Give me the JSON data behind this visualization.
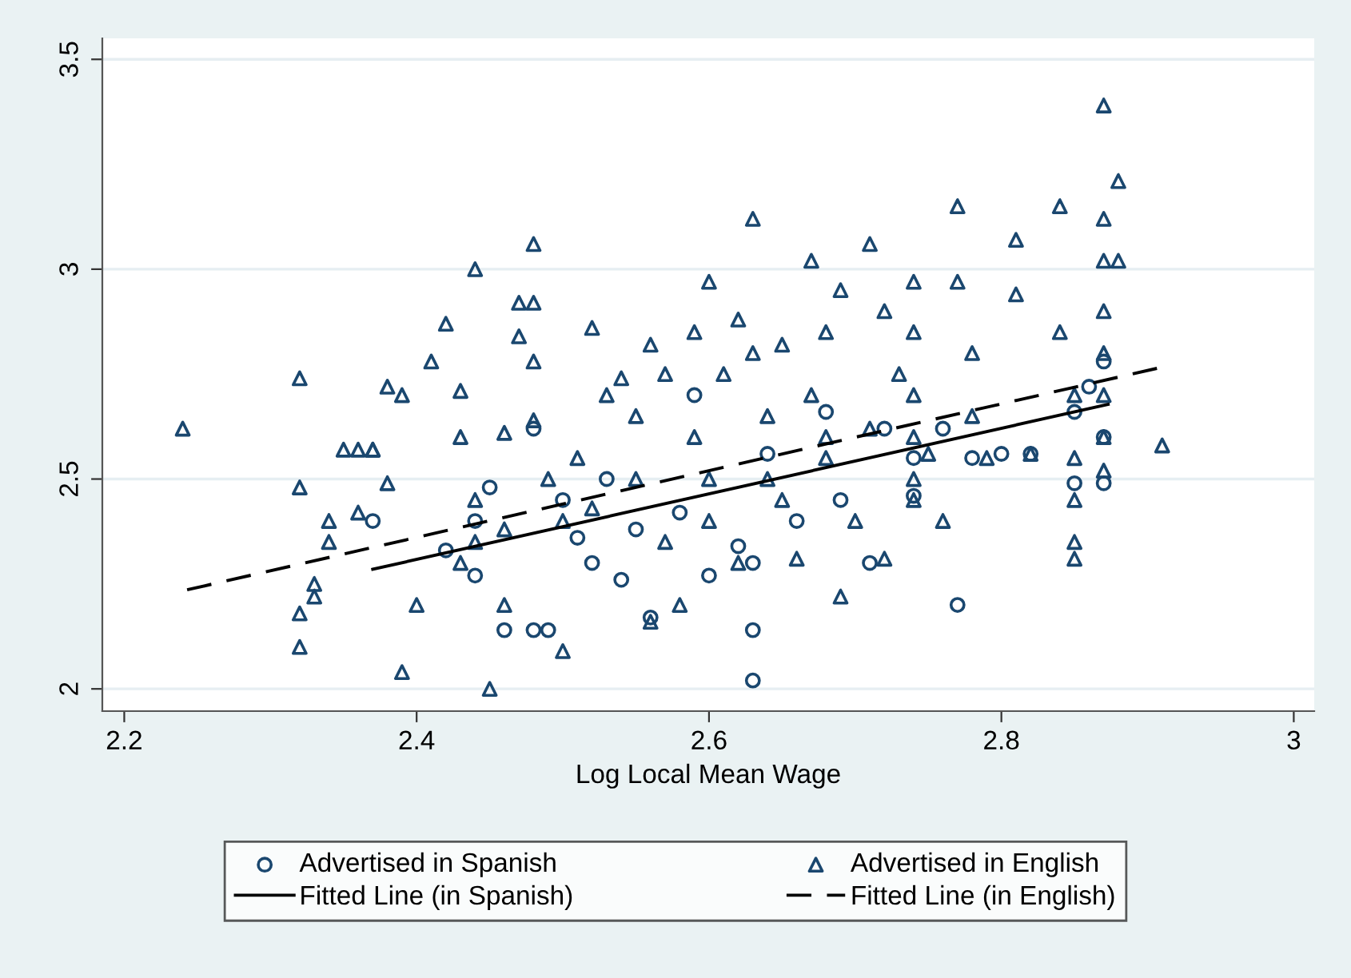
{
  "chart_data": {
    "type": "scatter",
    "xlabel": "Log Local Mean Wage",
    "xlim": [
      2.185,
      3.014
    ],
    "xticks": [
      {
        "value": 2.2,
        "label": "2.2"
      },
      {
        "value": 2.4,
        "label": "2.4"
      },
      {
        "value": 2.6,
        "label": "2.6"
      },
      {
        "value": 2.8,
        "label": "2.8"
      },
      {
        "value": 3,
        "label": "3"
      }
    ],
    "ylim": [
      1.947,
      3.55
    ],
    "yticks": [
      {
        "value": 2,
        "label": "2"
      },
      {
        "value": 2.5,
        "label": "2.5"
      },
      {
        "value": 3,
        "label": "3"
      },
      {
        "value": 3.5,
        "label": "3.5"
      }
    ],
    "grid": "y",
    "legend": "bottom",
    "series": [
      {
        "name": "Advertised in Spanish",
        "marker": "circle",
        "color": "#1a476f",
        "x": [
          2.37,
          2.42,
          2.44,
          2.44,
          2.46,
          2.48,
          2.48,
          2.49,
          2.5,
          2.52,
          2.53,
          2.55,
          2.56,
          2.58,
          2.59,
          2.6,
          2.62,
          2.63,
          2.63,
          2.63,
          2.64,
          2.66,
          2.68,
          2.69,
          2.71,
          2.72,
          2.74,
          2.74,
          2.76,
          2.77,
          2.78,
          2.8,
          2.82,
          2.85,
          2.85,
          2.86,
          2.87,
          2.87,
          2.87,
          2.45,
          2.51,
          2.54
        ],
        "values": [
          2.4,
          2.33,
          2.27,
          2.4,
          2.14,
          2.14,
          2.62,
          2.14,
          2.45,
          2.3,
          2.5,
          2.38,
          2.17,
          2.42,
          2.7,
          2.27,
          2.34,
          2.14,
          2.02,
          2.3,
          2.56,
          2.4,
          2.66,
          2.45,
          2.3,
          2.62,
          2.55,
          2.46,
          2.62,
          2.2,
          2.55,
          2.56,
          2.56,
          2.66,
          2.49,
          2.72,
          2.49,
          2.6,
          2.78,
          2.48,
          2.36,
          2.26
        ]
      },
      {
        "name": "Advertised in English",
        "marker": "triangle",
        "color": "#1a476f",
        "x": [
          2.24,
          2.32,
          2.32,
          2.32,
          2.32,
          2.33,
          2.33,
          2.34,
          2.34,
          2.35,
          2.36,
          2.37,
          2.37,
          2.36,
          2.38,
          2.39,
          2.38,
          2.39,
          2.4,
          2.41,
          2.42,
          2.43,
          2.43,
          2.44,
          2.43,
          2.44,
          2.45,
          2.46,
          2.46,
          2.47,
          2.47,
          2.48,
          2.48,
          2.48,
          2.48,
          2.49,
          2.5,
          2.5,
          2.51,
          2.52,
          2.53,
          2.54,
          2.55,
          2.55,
          2.56,
          2.56,
          2.57,
          2.58,
          2.59,
          2.59,
          2.6,
          2.6,
          2.61,
          2.62,
          2.62,
          2.63,
          2.63,
          2.64,
          2.65,
          2.65,
          2.66,
          2.67,
          2.67,
          2.68,
          2.68,
          2.69,
          2.69,
          2.7,
          2.71,
          2.71,
          2.72,
          2.72,
          2.73,
          2.74,
          2.74,
          2.74,
          2.74,
          2.74,
          2.74,
          2.75,
          2.76,
          2.77,
          2.77,
          2.78,
          2.78,
          2.79,
          2.81,
          2.81,
          2.82,
          2.84,
          2.84,
          2.85,
          2.85,
          2.85,
          2.85,
          2.85,
          2.87,
          2.87,
          2.87,
          2.87,
          2.87,
          2.87,
          2.87,
          2.87,
          2.88,
          2.88,
          2.91,
          2.44,
          2.46,
          2.52,
          2.57,
          2.6,
          2.64,
          2.68
        ],
        "values": [
          2.62,
          2.74,
          2.48,
          2.18,
          2.1,
          2.22,
          2.25,
          2.4,
          2.35,
          2.57,
          2.57,
          2.57,
          2.57,
          2.42,
          2.72,
          2.7,
          2.49,
          2.04,
          2.2,
          2.78,
          2.87,
          2.71,
          2.6,
          3.0,
          2.3,
          2.45,
          2.0,
          2.2,
          2.61,
          2.84,
          2.92,
          3.06,
          2.92,
          2.78,
          2.64,
          2.5,
          2.4,
          2.09,
          2.55,
          2.86,
          2.7,
          2.74,
          2.65,
          2.5,
          2.82,
          2.16,
          2.75,
          2.2,
          2.85,
          2.6,
          2.97,
          2.5,
          2.75,
          2.88,
          2.3,
          3.12,
          2.8,
          2.65,
          2.82,
          2.45,
          2.31,
          3.02,
          2.7,
          2.85,
          2.6,
          2.22,
          2.95,
          2.4,
          3.06,
          2.62,
          2.9,
          2.31,
          2.75,
          2.97,
          2.85,
          2.7,
          2.6,
          2.5,
          2.45,
          2.56,
          2.4,
          3.15,
          2.97,
          2.8,
          2.65,
          2.55,
          3.07,
          2.94,
          2.56,
          2.85,
          3.15,
          2.7,
          2.55,
          2.45,
          2.35,
          2.31,
          3.39,
          3.12,
          3.02,
          2.9,
          2.8,
          2.7,
          2.6,
          2.52,
          3.21,
          3.02,
          2.58,
          2.35,
          2.38,
          2.43,
          2.35,
          2.4,
          2.5,
          2.55
        ]
      },
      {
        "name": "Fitted Line (in Spanish)",
        "type": "line",
        "line_style": "solid",
        "color": "#000000",
        "x": [
          2.37,
          2.873
        ],
        "values": [
          2.285,
          2.678
        ]
      },
      {
        "name": "Fitted Line (in English)",
        "type": "line",
        "line_style": "dashed",
        "color": "#000000",
        "x": [
          2.243,
          2.908
        ],
        "values": [
          2.236,
          2.765
        ]
      }
    ]
  }
}
